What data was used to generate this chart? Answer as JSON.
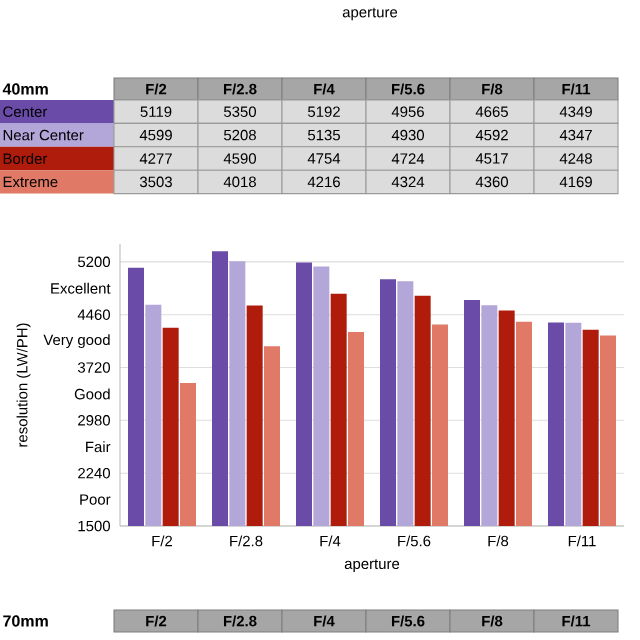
{
  "chart_data": {
    "type": "bar",
    "ylabel": "resolution (LW/PH)",
    "xlabel": "aperture",
    "legend_title": "40mm",
    "categories": [
      "F/2",
      "F/2.8",
      "F/4",
      "F/5.6",
      "F/8",
      "F/11"
    ],
    "series": [
      {
        "name": "Center",
        "color": "#6a4ca8",
        "values": [
          5119,
          5350,
          5192,
          4956,
          4665,
          4349
        ]
      },
      {
        "name": "Near Center",
        "color": "#b3a6d9",
        "values": [
          4599,
          5208,
          5135,
          4930,
          4592,
          4347
        ]
      },
      {
        "name": "Border",
        "color": "#b01c0c",
        "values": [
          4277,
          4590,
          4754,
          4724,
          4517,
          4248
        ]
      },
      {
        "name": "Extreme",
        "color": "#e07a66",
        "values": [
          3503,
          4018,
          4216,
          4324,
          4360,
          4169
        ]
      }
    ],
    "ylim": [
      1500,
      5450
    ],
    "yticks": [
      1500,
      {
        "value": 1870,
        "label": "Poor"
      },
      2240,
      {
        "value": 2610,
        "label": "Fair"
      },
      2980,
      {
        "value": 3350,
        "label": "Good"
      },
      3720,
      {
        "value": 4090,
        "label": "Very good"
      },
      4460,
      {
        "value": 4830,
        "label": "Excellent"
      },
      5200
    ],
    "grid": "y",
    "legend": "top",
    "data_labels": true,
    "annotations": [
      "aperture",
      "70mm"
    ]
  }
}
